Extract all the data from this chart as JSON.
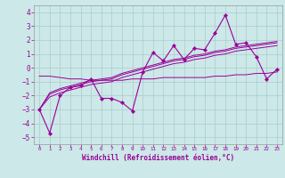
{
  "xlabel": "Windchill (Refroidissement éolien,°C)",
  "x": [
    0,
    1,
    2,
    3,
    4,
    5,
    6,
    7,
    8,
    9,
    10,
    11,
    12,
    13,
    14,
    15,
    16,
    17,
    18,
    19,
    20,
    21,
    22,
    23
  ],
  "y_main": [
    -3.0,
    -4.7,
    -2.0,
    -1.4,
    -1.3,
    -0.8,
    -2.2,
    -2.2,
    -2.5,
    -3.1,
    -0.3,
    1.1,
    0.5,
    1.6,
    0.6,
    1.4,
    1.3,
    2.5,
    3.8,
    1.7,
    1.8,
    0.8,
    -0.8,
    -0.1
  ],
  "y_trend_upper": [
    -3.0,
    -1.8,
    -1.5,
    -1.3,
    -1.1,
    -0.9,
    -0.8,
    -0.7,
    -0.4,
    -0.2,
    0.0,
    0.2,
    0.4,
    0.6,
    0.7,
    0.9,
    1.0,
    1.2,
    1.3,
    1.5,
    1.6,
    1.7,
    1.8,
    1.9
  ],
  "y_trend_mid": [
    -3.0,
    -1.9,
    -1.6,
    -1.4,
    -1.2,
    -1.0,
    -0.9,
    -0.8,
    -0.5,
    -0.3,
    -0.1,
    0.1,
    0.3,
    0.5,
    0.6,
    0.8,
    0.9,
    1.1,
    1.2,
    1.4,
    1.5,
    1.6,
    1.7,
    1.8
  ],
  "y_trend_lower": [
    -3.0,
    -2.1,
    -1.8,
    -1.6,
    -1.4,
    -1.2,
    -1.1,
    -1.0,
    -0.7,
    -0.5,
    -0.3,
    -0.1,
    0.1,
    0.3,
    0.4,
    0.6,
    0.7,
    0.9,
    1.0,
    1.2,
    1.3,
    1.4,
    1.5,
    1.6
  ],
  "y_flat": [
    -0.6,
    -0.6,
    -0.7,
    -0.8,
    -0.8,
    -0.9,
    -0.9,
    -0.9,
    -0.9,
    -0.8,
    -0.8,
    -0.8,
    -0.7,
    -0.7,
    -0.7,
    -0.7,
    -0.7,
    -0.6,
    -0.6,
    -0.5,
    -0.5,
    -0.4,
    -0.4,
    -0.3
  ],
  "ylim": [
    -5.5,
    4.5
  ],
  "xlim": [
    -0.5,
    23.5
  ],
  "color": "#990099",
  "bg_color": "#cce8e8",
  "grid_color": "#aacccc",
  "yticks": [
    -5,
    -4,
    -3,
    -2,
    -1,
    0,
    1,
    2,
    3,
    4
  ]
}
